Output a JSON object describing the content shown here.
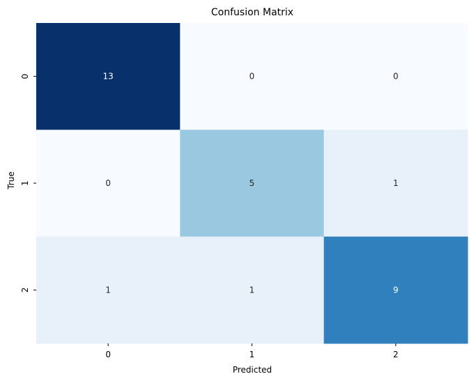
{
  "chart_data": {
    "type": "heatmap",
    "title": "Confusion Matrix",
    "xlabel": "Predicted",
    "ylabel": "True",
    "x_categories": [
      "0",
      "1",
      "2"
    ],
    "y_categories": [
      "0",
      "1",
      "2"
    ],
    "values": [
      [
        13,
        0,
        0
      ],
      [
        0,
        5,
        1
      ],
      [
        1,
        1,
        9
      ]
    ],
    "colormap": "Blues",
    "color_range": [
      0,
      13
    ],
    "colorbar": false
  }
}
